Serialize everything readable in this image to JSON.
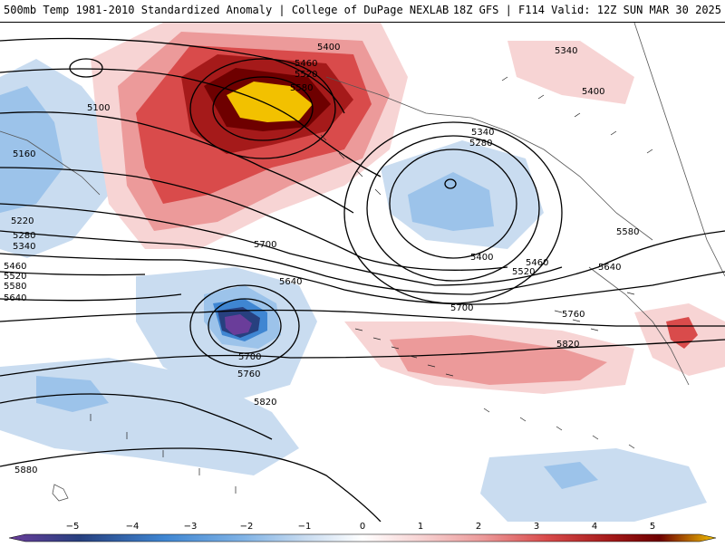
{
  "header": {
    "title": "500mb Temp 1981-2010 Standardized Anomaly | College of DuPage NEXLAB",
    "run_info": "18Z GFS | F114 Valid: 12Z SUN MAR 30 2025"
  },
  "contour_labels": [
    "5400",
    "5460",
    "5520",
    "5580",
    "5100",
    "5160",
    "5220",
    "5280",
    "5340",
    "5460",
    "5520",
    "5580",
    "5640",
    "5340",
    "5280",
    "5400",
    "5400",
    "5460",
    "5520",
    "5580",
    "5640",
    "5700",
    "5640",
    "5700",
    "5760",
    "5700",
    "5760",
    "5820",
    "5820",
    "5880",
    "5340",
    "5400"
  ],
  "colorbar": {
    "ticks": [
      "−5",
      "−4",
      "−3",
      "−2",
      "−1",
      "0",
      "1",
      "2",
      "3",
      "4",
      "5"
    ],
    "colors": [
      "#6a3d9a",
      "#27407f",
      "#3f86d2",
      "#7fb2e5",
      "#c9dcf0",
      "#ffffff",
      "#f7d4d4",
      "#ec9a9a",
      "#d94b4b",
      "#a51a1a",
      "#6e0000",
      "#f2c100"
    ]
  }
}
